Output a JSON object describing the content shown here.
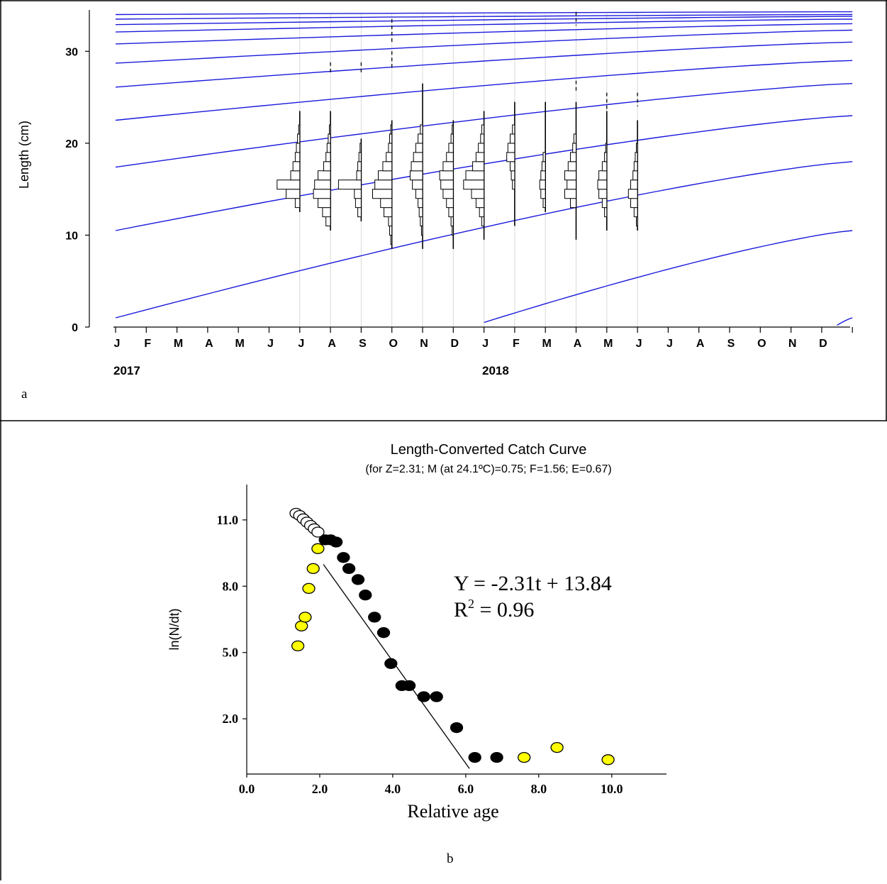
{
  "panels": {
    "a_label": "a",
    "b_label": "b"
  },
  "colors": {
    "growth_curve": "#1a1adc",
    "histogram": "#000000",
    "gridline": "#d9d9d9",
    "fill_yellow": "#ffff00",
    "point_black": "#000000"
  },
  "chart_data": [
    {
      "id": "a",
      "type": "histogram",
      "title": "",
      "ylabel": "Length (cm)",
      "xlabel": "",
      "ylim": [
        0,
        34.5
      ],
      "yticks": [
        0,
        10,
        20,
        30
      ],
      "month_labels": [
        "J",
        "F",
        "M",
        "A",
        "M",
        "J",
        "J",
        "A",
        "S",
        "O",
        "N",
        "D",
        "J",
        "F",
        "M",
        "A",
        "M",
        "J",
        "J",
        "A",
        "S",
        "O",
        "N",
        "D"
      ],
      "year_labels": [
        "2017",
        "2018"
      ],
      "x_unit": "months since start of 2017",
      "growth_curves": [
        {
          "start_month": 0,
          "start_length": 1.0,
          "end_length": 18.0
        },
        {
          "start_month": 0,
          "start_length": 10.5,
          "end_length": 23.0
        },
        {
          "start_month": 0,
          "start_length": 17.4,
          "end_length": 26.5
        },
        {
          "start_month": 0,
          "start_length": 22.5,
          "end_length": 29.0
        },
        {
          "start_month": 0,
          "start_length": 26.1,
          "end_length": 31.0
        },
        {
          "start_month": 0,
          "start_length": 28.7,
          "end_length": 32.3
        },
        {
          "start_month": 0,
          "start_length": 30.8,
          "end_length": 33.0
        },
        {
          "start_month": 0,
          "start_length": 32.1,
          "end_length": 33.5
        },
        {
          "start_month": 0,
          "start_length": 32.9,
          "end_length": 33.8
        },
        {
          "start_month": 0,
          "start_length": 33.5,
          "end_length": 34.0
        },
        {
          "start_month": 0,
          "start_length": 34.0,
          "end_length": 34.3
        },
        {
          "start_month": 12,
          "start_length": 0.5,
          "end_length": 10.5
        },
        {
          "start_month": 23.5,
          "start_length": 0.2,
          "end_length": 1.0
        }
      ],
      "dashed_markers": [
        {
          "month": 7,
          "from": 27.5,
          "to": 28.8
        },
        {
          "month": 8,
          "from": 27.5,
          "to": 28.8
        },
        {
          "month": 9,
          "from": 28.0,
          "to": 30.0
        },
        {
          "month": 9,
          "from": 30.8,
          "to": 33.5
        },
        {
          "month": 15,
          "from": 25.5,
          "to": 26.8
        },
        {
          "month": 15,
          "from": 32.8,
          "to": 34.3
        },
        {
          "month": 16,
          "from": 23.5,
          "to": 25.5
        },
        {
          "month": 17,
          "from": 24.0,
          "to": 25.5
        }
      ],
      "samples": [
        {
          "month": 6,
          "min": 12.5,
          "max": 23.5,
          "bars": [
            [
              13.5,
              0.2
            ],
            [
              14.5,
              0.6
            ],
            [
              15.5,
              1.0
            ],
            [
              16.5,
              0.4
            ],
            [
              17.5,
              0.3
            ],
            [
              18.5,
              0.2
            ],
            [
              19.5,
              0.15
            ],
            [
              20.5,
              0.1
            ],
            [
              21.5,
              0.05
            ]
          ]
        },
        {
          "month": 7,
          "min": 10.5,
          "max": 23.5,
          "bars": [
            [
              11.5,
              0.2
            ],
            [
              12.5,
              0.35
            ],
            [
              13.5,
              0.55
            ],
            [
              14.5,
              0.75
            ],
            [
              15.5,
              0.7
            ],
            [
              16.5,
              0.55
            ],
            [
              17.5,
              0.3
            ],
            [
              18.5,
              0.2
            ],
            [
              19.5,
              0.15
            ],
            [
              20.5,
              0.1
            ],
            [
              21.5,
              0.05
            ]
          ]
        },
        {
          "month": 8,
          "min": 11.5,
          "max": 20.5,
          "bars": [
            [
              12.5,
              0.15
            ],
            [
              13.5,
              0.25
            ],
            [
              14.5,
              0.3
            ],
            [
              15.5,
              1.0
            ],
            [
              16.5,
              0.2
            ],
            [
              17.5,
              0.15
            ],
            [
              18.5,
              0.1
            ],
            [
              19.5,
              0.05
            ]
          ]
        },
        {
          "month": 9,
          "min": 8.5,
          "max": 22.5,
          "bars": [
            [
              9.5,
              0.05
            ],
            [
              10.5,
              0.1
            ],
            [
              11.5,
              0.15
            ],
            [
              12.5,
              0.35
            ],
            [
              13.5,
              0.5
            ],
            [
              14.5,
              0.85
            ],
            [
              15.5,
              0.75
            ],
            [
              16.5,
              0.6
            ],
            [
              17.5,
              0.4
            ],
            [
              18.5,
              0.25
            ],
            [
              19.5,
              0.15
            ],
            [
              20.5,
              0.1
            ],
            [
              21.5,
              0.05
            ]
          ]
        },
        {
          "month": 10,
          "min": 8.5,
          "max": 26.5,
          "bars": [
            [
              10.5,
              0.05
            ],
            [
              11.5,
              0.1
            ],
            [
              12.5,
              0.15
            ],
            [
              13.5,
              0.2
            ],
            [
              14.5,
              0.3
            ],
            [
              15.5,
              0.45
            ],
            [
              16.5,
              0.55
            ],
            [
              17.5,
              0.5
            ],
            [
              18.5,
              0.4
            ],
            [
              19.5,
              0.3
            ],
            [
              20.5,
              0.2
            ],
            [
              21.5,
              0.1
            ]
          ]
        },
        {
          "month": 11,
          "min": 8.5,
          "max": 22.5,
          "bars": [
            [
              10.5,
              0.05
            ],
            [
              11.5,
              0.1
            ],
            [
              12.5,
              0.2
            ],
            [
              13.5,
              0.3
            ],
            [
              14.5,
              0.45
            ],
            [
              15.5,
              0.55
            ],
            [
              16.5,
              0.6
            ],
            [
              17.5,
              0.45
            ],
            [
              18.5,
              0.3
            ],
            [
              19.5,
              0.2
            ],
            [
              20.5,
              0.1
            ],
            [
              21.5,
              0.05
            ]
          ]
        },
        {
          "month": 12,
          "min": 9.5,
          "max": 23.5,
          "bars": [
            [
              11.5,
              0.1
            ],
            [
              12.5,
              0.2
            ],
            [
              13.5,
              0.35
            ],
            [
              14.5,
              0.55
            ],
            [
              15.5,
              0.9
            ],
            [
              16.5,
              0.8
            ],
            [
              17.5,
              0.5
            ],
            [
              18.5,
              0.35
            ],
            [
              19.5,
              0.25
            ],
            [
              20.5,
              0.15
            ],
            [
              21.5,
              0.1
            ]
          ]
        },
        {
          "month": 13,
          "min": 11.0,
          "max": 24.5,
          "bars": [
            [
              15.5,
              0.1
            ],
            [
              16.5,
              0.15
            ],
            [
              17.5,
              0.2
            ],
            [
              18.5,
              0.35
            ],
            [
              19.5,
              0.3
            ],
            [
              20.5,
              0.2
            ],
            [
              21.5,
              0.1
            ]
          ]
        },
        {
          "month": 14,
          "min": 12.5,
          "max": 24.5,
          "bars": [
            [
              13.5,
              0.1
            ],
            [
              14.5,
              0.2
            ],
            [
              15.5,
              0.25
            ],
            [
              16.5,
              0.2
            ],
            [
              17.5,
              0.15
            ],
            [
              18.5,
              0.1
            ]
          ]
        },
        {
          "month": 15,
          "min": 9.5,
          "max": 24.5,
          "bars": [
            [
              13.5,
              0.25
            ],
            [
              14.5,
              0.5
            ],
            [
              15.5,
              0.4
            ],
            [
              16.5,
              0.5
            ],
            [
              17.5,
              0.35
            ],
            [
              18.5,
              0.25
            ],
            [
              19.5,
              0.15
            ],
            [
              20.5,
              0.1
            ]
          ]
        },
        {
          "month": 16,
          "min": 10.5,
          "max": 23.5,
          "bars": [
            [
              12.5,
              0.1
            ],
            [
              13.5,
              0.2
            ],
            [
              14.5,
              0.35
            ],
            [
              15.5,
              0.4
            ],
            [
              16.5,
              0.35
            ],
            [
              17.5,
              0.2
            ],
            [
              18.5,
              0.1
            ],
            [
              19.5,
              0.05
            ]
          ]
        },
        {
          "month": 17,
          "min": 10.5,
          "max": 22.5,
          "bars": [
            [
              11.5,
              0.05
            ],
            [
              12.5,
              0.15
            ],
            [
              13.5,
              0.3
            ],
            [
              14.5,
              0.4
            ],
            [
              15.5,
              0.3
            ],
            [
              16.5,
              0.2
            ],
            [
              17.5,
              0.15
            ],
            [
              18.5,
              0.1
            ],
            [
              19.5,
              0.05
            ]
          ]
        }
      ]
    },
    {
      "id": "b",
      "type": "scatter",
      "title": "Length-Converted Catch Curve",
      "subtitle": "(for Z=2.31; M (at 24.1ºC)=0.75; F=1.56; E=0.67)",
      "xlabel": "Relative age",
      "ylabel": "ln(N/dt)",
      "xlim": [
        0,
        11.5
      ],
      "ylim": [
        -0.5,
        12.6
      ],
      "xticks": [
        "0.0",
        "2.0",
        "4.0",
        "6.0",
        "8.0",
        "10.0"
      ],
      "yticks": [
        "2.0",
        "5.0",
        "8.0",
        "11.0"
      ],
      "equation": "Y = -2.31t + 13.84",
      "r2_base": "R",
      "r2_exp": "2",
      "r2_value": " = 0.96",
      "regression_line": {
        "slope": -2.31,
        "intercept": 13.84,
        "x_from": 2.1,
        "x_to": 6.1
      },
      "series": [
        {
          "style": "open",
          "points": [
            [
              1.35,
              11.3
            ],
            [
              1.45,
              11.2
            ],
            [
              1.55,
              11.05
            ],
            [
              1.65,
              10.9
            ],
            [
              1.75,
              10.75
            ],
            [
              1.85,
              10.6
            ],
            [
              1.95,
              10.45
            ]
          ]
        },
        {
          "style": "yellow",
          "points": [
            [
              1.4,
              5.3
            ],
            [
              1.5,
              6.2
            ],
            [
              1.6,
              6.6
            ],
            [
              1.7,
              7.9
            ],
            [
              1.82,
              8.8
            ],
            [
              1.95,
              9.7
            ],
            [
              7.6,
              0.25
            ],
            [
              8.5,
              0.7
            ],
            [
              9.9,
              0.15
            ]
          ]
        },
        {
          "style": "filled",
          "points": [
            [
              2.15,
              10.1
            ],
            [
              2.3,
              10.1
            ],
            [
              2.45,
              10.0
            ],
            [
              2.65,
              9.3
            ],
            [
              2.8,
              8.8
            ],
            [
              3.05,
              8.3
            ],
            [
              3.25,
              7.6
            ],
            [
              3.5,
              6.6
            ],
            [
              3.75,
              5.9
            ],
            [
              3.95,
              4.5
            ],
            [
              4.25,
              3.5
            ],
            [
              4.45,
              3.5
            ],
            [
              4.85,
              3.0
            ],
            [
              5.2,
              3.0
            ],
            [
              5.75,
              1.6
            ],
            [
              6.25,
              0.25
            ],
            [
              6.85,
              0.25
            ]
          ]
        }
      ]
    }
  ]
}
